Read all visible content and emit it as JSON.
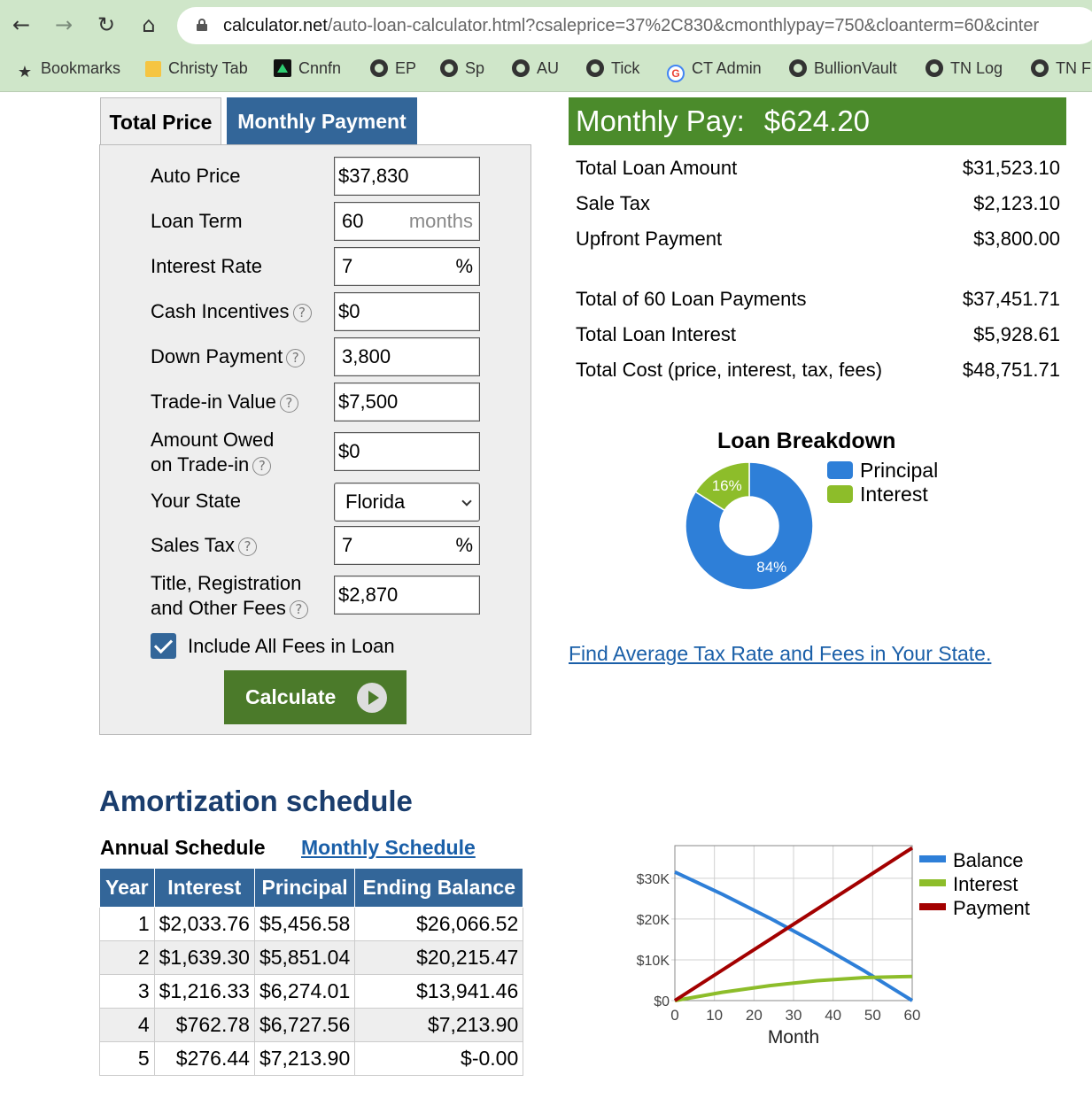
{
  "browser": {
    "url_host": "calculator.net",
    "url_path": "/auto-loan-calculator.html?csaleprice=37%2C830&cmonthlypay=750&cloanterm=60&cinter",
    "bookmarks": [
      {
        "label": "Bookmarks",
        "icon": "star-icon"
      },
      {
        "label": "Christy Tab",
        "icon": "folder-icon"
      },
      {
        "label": "Cnnfn",
        "icon": "cnnfn-icon"
      },
      {
        "label": "EP",
        "icon": "globe-icon"
      },
      {
        "label": "Sp",
        "icon": "globe-icon"
      },
      {
        "label": "AU",
        "icon": "globe-icon"
      },
      {
        "label": "Tick",
        "icon": "globe-icon"
      },
      {
        "label": "CT Admin",
        "icon": "google-icon"
      },
      {
        "label": "BullionVault",
        "icon": "globe-icon"
      },
      {
        "label": "TN Log",
        "icon": "globe-icon"
      },
      {
        "label": "TN F",
        "icon": "globe-icon"
      }
    ]
  },
  "tabs": {
    "total_price": "Total Price",
    "monthly_payment": "Monthly Payment"
  },
  "form": {
    "auto_price": {
      "label": "Auto Price",
      "value": "$37,830"
    },
    "loan_term": {
      "label": "Loan Term",
      "value": "60",
      "suffix": "months"
    },
    "interest_rate": {
      "label": "Interest Rate",
      "value": "7",
      "suffix": "%"
    },
    "cash_incentives": {
      "label": "Cash Incentives",
      "value": "$0"
    },
    "down_payment": {
      "label": "Down Payment",
      "value": "3,800"
    },
    "trade_in_value": {
      "label": "Trade-in Value",
      "value": "$7,500"
    },
    "amount_owed": {
      "label_line1": "Amount Owed",
      "label_line2": "on Trade-in",
      "value": "$0"
    },
    "state": {
      "label": "Your State",
      "value": "Florida"
    },
    "sales_tax": {
      "label": "Sales Tax",
      "value": "7",
      "suffix": "%"
    },
    "fees": {
      "label_line1": "Title, Registration",
      "label_line2": "and Other Fees",
      "value": "$2,870"
    },
    "include_fees": {
      "label": "Include All Fees in Loan",
      "checked": true
    },
    "calculate_label": "Calculate",
    "help_glyph": "?"
  },
  "result": {
    "monthly_label": "Monthly Pay:",
    "monthly_value": "$624.20",
    "rows": [
      {
        "label": "Total Loan Amount",
        "value": "$31,523.10"
      },
      {
        "label": "Sale Tax",
        "value": "$2,123.10"
      },
      {
        "label": "Upfront Payment",
        "value": "$3,800.00"
      },
      {
        "label": "Total of 60 Loan Payments",
        "value": "$37,451.71"
      },
      {
        "label": "Total Loan Interest",
        "value": "$5,928.61"
      },
      {
        "label": "Total Cost (price, interest, tax, fees)",
        "value": "$48,751.71"
      }
    ]
  },
  "breakdown": {
    "title": "Loan Breakdown",
    "legend": [
      {
        "label": "Principal",
        "color": "#2e7fd8"
      },
      {
        "label": "Interest",
        "color": "#8dbd2a"
      }
    ],
    "slices": [
      {
        "label": "84%",
        "percent": 84,
        "color": "#2e7fd8"
      },
      {
        "label": "16%",
        "percent": 16,
        "color": "#8dbd2a"
      }
    ]
  },
  "find_link": "Find Average Tax Rate and Fees in Your State.",
  "amortization": {
    "title": "Amortization schedule",
    "annual_tab": "Annual Schedule",
    "monthly_tab": "Monthly Schedule",
    "headers": [
      "Year",
      "Interest",
      "Principal",
      "Ending Balance"
    ],
    "rows": [
      [
        "1",
        "$2,033.76",
        "$5,456.58",
        "$26,066.52"
      ],
      [
        "2",
        "$1,639.30",
        "$5,851.04",
        "$20,215.47"
      ],
      [
        "3",
        "$1,216.33",
        "$6,274.01",
        "$13,941.46"
      ],
      [
        "4",
        "$762.78",
        "$6,727.56",
        "$7,213.90"
      ],
      [
        "5",
        "$276.44",
        "$7,213.90",
        "$-0.00"
      ]
    ]
  },
  "chart_data": {
    "type": "line",
    "xlabel": "Month",
    "x_ticks": [
      "0",
      "10",
      "20",
      "30",
      "40",
      "50",
      "60"
    ],
    "y_ticks": [
      "$0",
      "$10K",
      "$20K",
      "$30K"
    ],
    "xlim": [
      0,
      60
    ],
    "ylim": [
      0,
      38000
    ],
    "grid": true,
    "legend_position": "right",
    "x": [
      0,
      12,
      24,
      36,
      48,
      60
    ],
    "series": [
      {
        "name": "Balance",
        "color": "#2e7fd8",
        "values": [
          31523.1,
          26066.52,
          20215.47,
          13941.46,
          7213.9,
          0
        ]
      },
      {
        "name": "Interest",
        "color": "#8dbd2a",
        "values": [
          0,
          2033.76,
          3673.06,
          4889.39,
          5652.17,
          5928.61
        ]
      },
      {
        "name": "Payment",
        "color": "#a30000",
        "values": [
          0,
          7490.34,
          14980.68,
          22471.02,
          29961.36,
          37451.71
        ]
      }
    ]
  }
}
